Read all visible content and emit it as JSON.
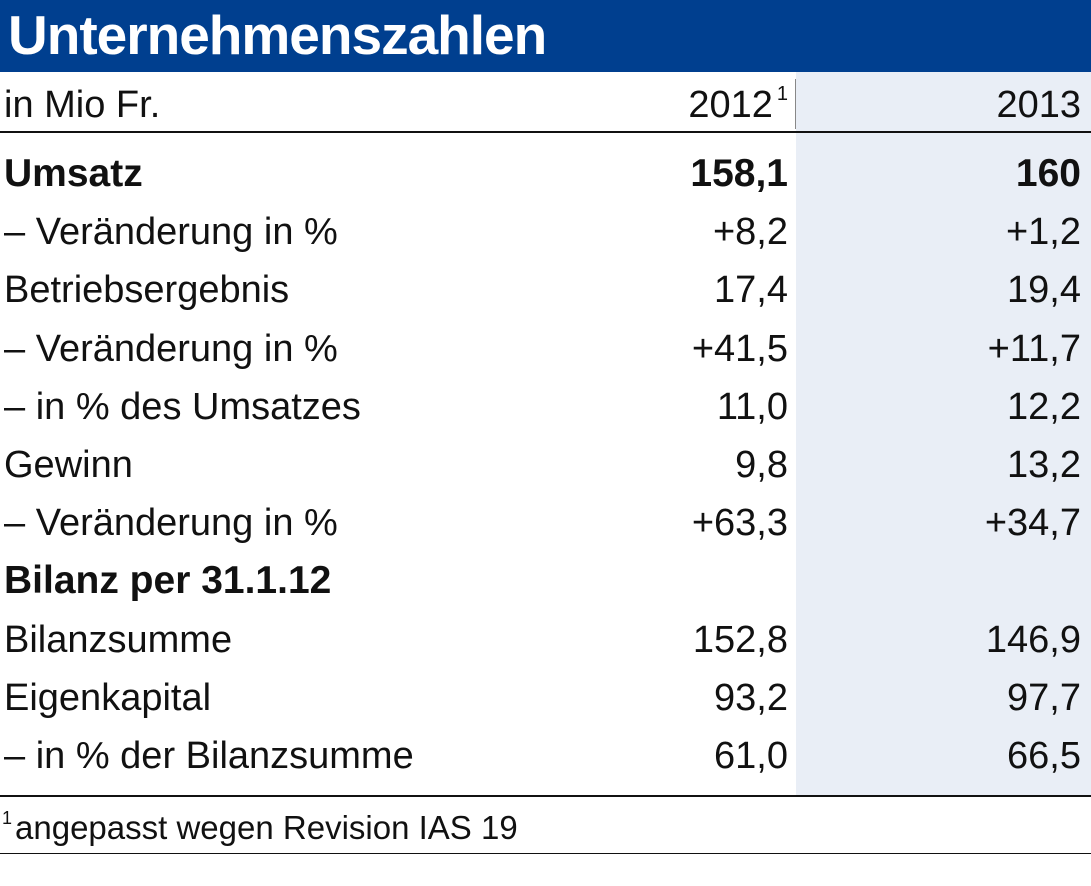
{
  "title": "Unternehmenszahlen",
  "header": {
    "unit_label": "in Mio Fr.",
    "col_2012": "2012",
    "col_2012_footnote_mark": "1",
    "col_2013": "2013"
  },
  "rows": [
    {
      "label": "Umsatz",
      "v2012": "158,1",
      "v2013": "160",
      "bold": true
    },
    {
      "label": "– Veränderung in %",
      "v2012": "+8,2",
      "v2013": "+1,2",
      "bold": false
    },
    {
      "label": "Betriebsergebnis",
      "v2012": "17,4",
      "v2013": "19,4",
      "bold": false
    },
    {
      "label": "– Veränderung in %",
      "v2012": "+41,5",
      "v2013": "+11,7",
      "bold": false
    },
    {
      "label": "– in % des Umsatzes",
      "v2012": "11,0",
      "v2013": "12,2",
      "bold": false
    },
    {
      "label": "Gewinn",
      "v2012": "9,8",
      "v2013": "13,2",
      "bold": false
    },
    {
      "label": "– Veränderung in %",
      "v2012": "+63,3",
      "v2013": "+34,7",
      "bold": false
    },
    {
      "label": "Bilanz per 31.1.12",
      "v2012": "",
      "v2013": "",
      "bold": true
    },
    {
      "label": "Bilanzsumme",
      "v2012": "152,8",
      "v2013": "146,9",
      "bold": false
    },
    {
      "label": "Eigenkapital",
      "v2012": "93,2",
      "v2013": "97,7",
      "bold": false
    },
    {
      "label": "– in % der Bilanzsumme",
      "v2012": "61,0",
      "v2013": "66,5",
      "bold": false
    }
  ],
  "footnote": {
    "mark": "1",
    "text": "angepasst wegen Revision IAS 19"
  },
  "colors": {
    "title_background": "#003f8f",
    "title_text": "#ffffff",
    "column_2013_shade": "#e9eef6",
    "text": "#111111"
  }
}
